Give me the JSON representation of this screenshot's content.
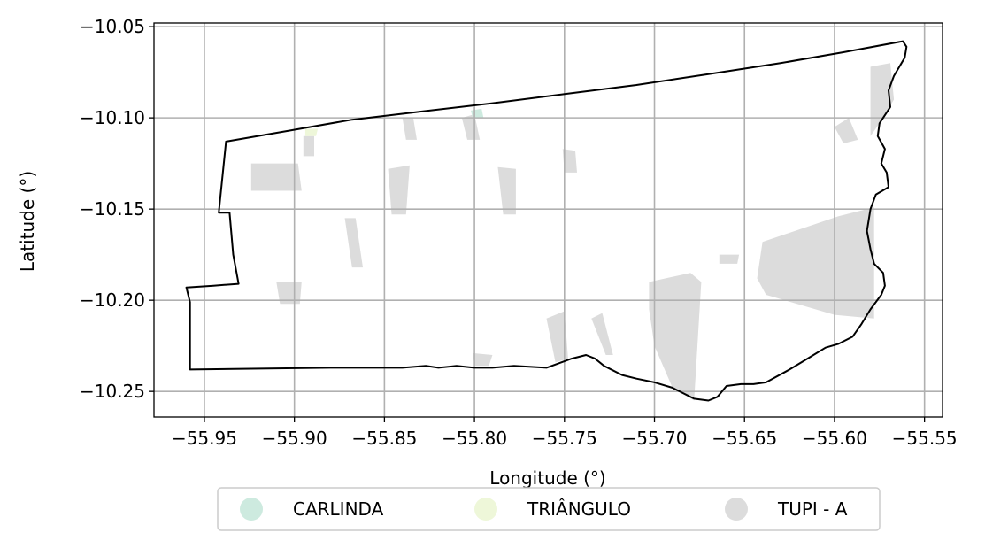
{
  "chart_data": {
    "type": "map",
    "xlabel": "Longitude (°)",
    "ylabel": "Latitude (°)",
    "xlim": [
      -55.978,
      -55.54
    ],
    "ylim": [
      -10.264,
      -10.048
    ],
    "xticks": [
      -55.95,
      -55.9,
      -55.85,
      -55.8,
      -55.75,
      -55.7,
      -55.65,
      -55.6,
      -55.55
    ],
    "xtick_labels": [
      "−55.95",
      "−55.90",
      "−55.85",
      "−55.80",
      "−55.75",
      "−55.70",
      "−55.65",
      "−55.60",
      "−55.55"
    ],
    "yticks": [
      -10.05,
      -10.1,
      -10.15,
      -10.2,
      -10.25
    ],
    "ytick_labels": [
      "−10.05",
      "−10.10",
      "−10.15",
      "−10.20",
      "−10.25"
    ],
    "grid": true,
    "legend_position": "bottom-center",
    "legend": [
      {
        "label": "CARLINDA",
        "color": "#cdeadf"
      },
      {
        "label": "TRIÂNGULO",
        "color": "#eef7d9"
      },
      {
        "label": "TUPI - A",
        "color": "#dcdcdc"
      }
    ],
    "boundary_color": "#000000",
    "boundary": [
      [
        -55.938,
        -10.113
      ],
      [
        -55.903,
        -10.107
      ],
      [
        -55.868,
        -10.101
      ],
      [
        -55.825,
        -10.096
      ],
      [
        -55.79,
        -10.092
      ],
      [
        -55.75,
        -10.087
      ],
      [
        -55.71,
        -10.082
      ],
      [
        -55.67,
        -10.076
      ],
      [
        -55.63,
        -10.07
      ],
      [
        -55.595,
        -10.064
      ],
      [
        -55.562,
        -10.058
      ],
      [
        -55.56,
        -10.061
      ],
      [
        -55.561,
        -10.067
      ],
      [
        -55.567,
        -10.077
      ],
      [
        -55.57,
        -10.085
      ],
      [
        -55.569,
        -10.094
      ],
      [
        -55.575,
        -10.103
      ],
      [
        -55.576,
        -10.11
      ],
      [
        -55.572,
        -10.117
      ],
      [
        -55.574,
        -10.125
      ],
      [
        -55.571,
        -10.13
      ],
      [
        -55.57,
        -10.138
      ],
      [
        -55.577,
        -10.142
      ],
      [
        -55.58,
        -10.15
      ],
      [
        -55.582,
        -10.162
      ],
      [
        -55.58,
        -10.172
      ],
      [
        -55.578,
        -10.18
      ],
      [
        -55.573,
        -10.185
      ],
      [
        -55.572,
        -10.192
      ],
      [
        -55.574,
        -10.197
      ],
      [
        -55.58,
        -10.205
      ],
      [
        -55.585,
        -10.213
      ],
      [
        -55.59,
        -10.22
      ],
      [
        -55.598,
        -10.224
      ],
      [
        -55.605,
        -10.226
      ],
      [
        -55.615,
        -10.232
      ],
      [
        -55.625,
        -10.238
      ],
      [
        -55.638,
        -10.245
      ],
      [
        -55.645,
        -10.246
      ],
      [
        -55.652,
        -10.246
      ],
      [
        -55.66,
        -10.247
      ],
      [
        -55.665,
        -10.253
      ],
      [
        -55.67,
        -10.255
      ],
      [
        -55.678,
        -10.254
      ],
      [
        -55.69,
        -10.248
      ],
      [
        -55.7,
        -10.245
      ],
      [
        -55.71,
        -10.243
      ],
      [
        -55.718,
        -10.241
      ],
      [
        -55.728,
        -10.236
      ],
      [
        -55.733,
        -10.232
      ],
      [
        -55.738,
        -10.23
      ],
      [
        -55.746,
        -10.232
      ],
      [
        -55.76,
        -10.237
      ],
      [
        -55.778,
        -10.236
      ],
      [
        -55.79,
        -10.237
      ],
      [
        -55.8,
        -10.237
      ],
      [
        -55.81,
        -10.236
      ],
      [
        -55.82,
        -10.237
      ],
      [
        -55.827,
        -10.236
      ],
      [
        -55.84,
        -10.237
      ],
      [
        -55.88,
        -10.237
      ],
      [
        -55.958,
        -10.238
      ],
      [
        -55.958,
        -10.201
      ],
      [
        -55.96,
        -10.193
      ],
      [
        -55.945,
        -10.192
      ],
      [
        -55.931,
        -10.191
      ],
      [
        -55.934,
        -10.175
      ],
      [
        -55.936,
        -10.152
      ],
      [
        -55.942,
        -10.152
      ],
      [
        -55.938,
        -10.113
      ]
    ],
    "regions": [
      {
        "name": "TUPI - A",
        "polygon": [
          [
            -55.598,
            -10.154
          ],
          [
            -55.578,
            -10.149
          ],
          [
            -55.578,
            -10.21
          ],
          [
            -55.6,
            -10.208
          ],
          [
            -55.638,
            -10.197
          ],
          [
            -55.643,
            -10.188
          ],
          [
            -55.64,
            -10.168
          ]
        ]
      },
      {
        "name": "TUPI - A",
        "polygon": [
          [
            -55.703,
            -10.19
          ],
          [
            -55.68,
            -10.185
          ],
          [
            -55.674,
            -10.19
          ],
          [
            -55.678,
            -10.255
          ],
          [
            -55.69,
            -10.248
          ],
          [
            -55.7,
            -10.225
          ],
          [
            -55.703,
            -10.205
          ]
        ]
      },
      {
        "name": "TUPI - A",
        "polygon": [
          [
            -55.58,
            -10.072
          ],
          [
            -55.569,
            -10.07
          ],
          [
            -55.567,
            -10.09
          ],
          [
            -55.575,
            -10.103
          ],
          [
            -55.58,
            -10.11
          ]
        ]
      },
      {
        "name": "TUPI - A",
        "polygon": [
          [
            -55.924,
            -10.125
          ],
          [
            -55.898,
            -10.125
          ],
          [
            -55.896,
            -10.14
          ],
          [
            -55.924,
            -10.14
          ]
        ]
      },
      {
        "name": "TUPI - A",
        "polygon": [
          [
            -55.848,
            -10.128
          ],
          [
            -55.836,
            -10.126
          ],
          [
            -55.838,
            -10.153
          ],
          [
            -55.846,
            -10.153
          ]
        ]
      },
      {
        "name": "TUPI - A",
        "polygon": [
          [
            -55.787,
            -10.127
          ],
          [
            -55.777,
            -10.128
          ],
          [
            -55.777,
            -10.153
          ],
          [
            -55.784,
            -10.153
          ]
        ]
      },
      {
        "name": "TUPI - A",
        "polygon": [
          [
            -55.751,
            -10.117
          ],
          [
            -55.744,
            -10.118
          ],
          [
            -55.743,
            -10.13
          ],
          [
            -55.75,
            -10.13
          ]
        ]
      },
      {
        "name": "TUPI - A",
        "polygon": [
          [
            -55.801,
            -10.229
          ],
          [
            -55.79,
            -10.23
          ],
          [
            -55.792,
            -10.236
          ],
          [
            -55.8,
            -10.236
          ]
        ]
      },
      {
        "name": "TUPI - A",
        "polygon": [
          [
            -55.735,
            -10.21
          ],
          [
            -55.729,
            -10.207
          ],
          [
            -55.723,
            -10.23
          ],
          [
            -55.727,
            -10.23
          ]
        ]
      },
      {
        "name": "TUPI - A",
        "polygon": [
          [
            -55.664,
            -10.175
          ],
          [
            -55.653,
            -10.175
          ],
          [
            -55.654,
            -10.18
          ],
          [
            -55.664,
            -10.18
          ]
        ]
      },
      {
        "name": "TUPI - A",
        "polygon": [
          [
            -55.91,
            -10.19
          ],
          [
            -55.896,
            -10.19
          ],
          [
            -55.897,
            -10.202
          ],
          [
            -55.908,
            -10.202
          ]
        ]
      },
      {
        "name": "TUPI - A",
        "polygon": [
          [
            -55.895,
            -10.11
          ],
          [
            -55.889,
            -10.11
          ],
          [
            -55.889,
            -10.121
          ],
          [
            -55.895,
            -10.121
          ]
        ]
      },
      {
        "name": "TUPI - A",
        "polygon": [
          [
            -55.84,
            -10.1
          ],
          [
            -55.834,
            -10.1
          ],
          [
            -55.832,
            -10.112
          ],
          [
            -55.838,
            -10.112
          ]
        ]
      },
      {
        "name": "TUPI - A",
        "polygon": [
          [
            -55.807,
            -10.1
          ],
          [
            -55.8,
            -10.098
          ],
          [
            -55.797,
            -10.112
          ],
          [
            -55.804,
            -10.112
          ]
        ]
      },
      {
        "name": "TUPI - A",
        "polygon": [
          [
            -55.872,
            -10.155
          ],
          [
            -55.866,
            -10.155
          ],
          [
            -55.862,
            -10.182
          ],
          [
            -55.868,
            -10.182
          ]
        ]
      },
      {
        "name": "TUPI - A",
        "polygon": [
          [
            -55.6,
            -10.105
          ],
          [
            -55.592,
            -10.1
          ],
          [
            -55.587,
            -10.112
          ],
          [
            -55.595,
            -10.114
          ]
        ]
      },
      {
        "name": "TUPI - A",
        "polygon": [
          [
            -55.76,
            -10.21
          ],
          [
            -55.75,
            -10.206
          ],
          [
            -55.748,
            -10.232
          ],
          [
            -55.755,
            -10.234
          ]
        ]
      },
      {
        "name": "CARLINDA",
        "polygon": [
          [
            -55.802,
            -10.096
          ],
          [
            -55.796,
            -10.095
          ],
          [
            -55.795,
            -10.1
          ],
          [
            -55.801,
            -10.1
          ]
        ]
      },
      {
        "name": "TRIÂNGULO",
        "polygon": [
          [
            -55.894,
            -10.106
          ],
          [
            -55.887,
            -10.106
          ],
          [
            -55.888,
            -10.11
          ],
          [
            -55.894,
            -10.11
          ]
        ]
      }
    ]
  }
}
